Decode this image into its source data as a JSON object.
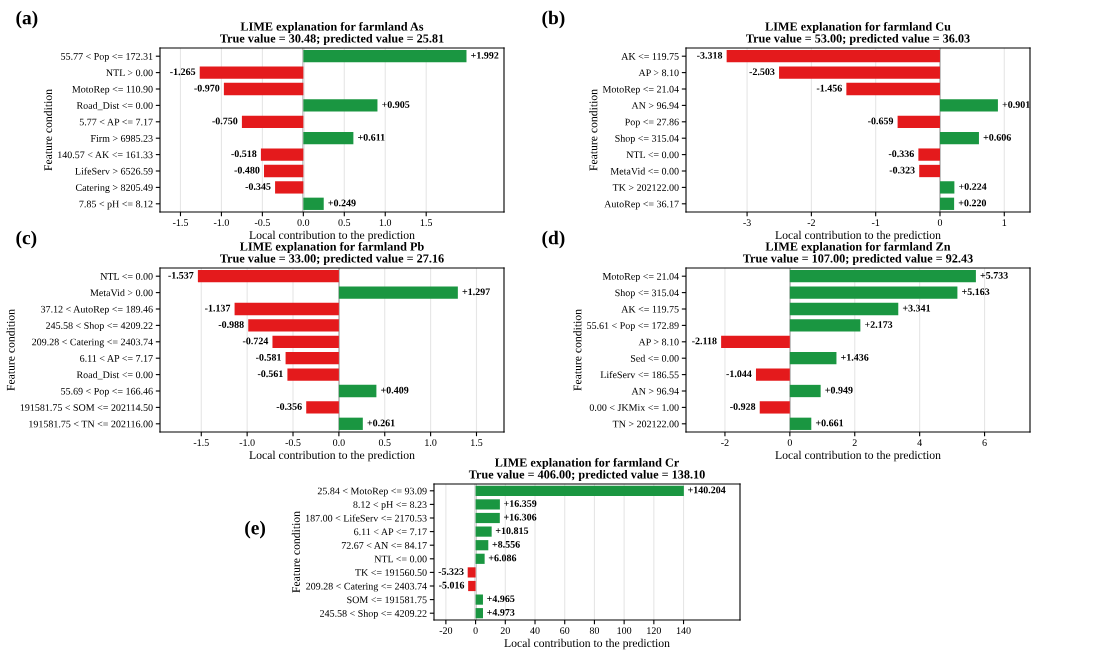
{
  "chart_data": [
    {
      "type": "bar",
      "orientation": "horizontal",
      "title": "LIME explanation for farmland As",
      "subtitle": "True value = 30.48; predicted value = 25.81",
      "xlabel": "Local contribution to the prediction",
      "ylabel": "Feature condition",
      "annotations": [
        "(a)"
      ],
      "categories": [
        "55.77 < Pop <= 172.31",
        "NTL > 0.00",
        "MotoRep <= 110.90",
        "Road_Dist <= 0.00",
        "5.77 < AP <= 7.17",
        "Firm > 6985.23",
        "140.57 < AK <= 161.33",
        "LifeServ > 6526.59",
        "Catering > 8205.49",
        "7.85 < pH <= 8.12"
      ],
      "values": [
        1.992,
        -1.265,
        -0.97,
        0.905,
        -0.75,
        0.611,
        -0.518,
        -0.48,
        -0.345,
        0.249
      ],
      "value_labels": [
        "+1.992",
        "-1.265",
        "-0.970",
        "+0.905",
        "-0.750",
        "+0.611",
        "-0.518",
        "-0.480",
        "-0.345",
        "+0.249"
      ],
      "colors": [
        "#1a9641",
        "#e41a1c",
        "#e41a1c",
        "#1a9641",
        "#e41a1c",
        "#1a9641",
        "#e41a1c",
        "#e41a1c",
        "#e41a1c",
        "#1a9641"
      ],
      "xlim": [
        -1.75,
        2.45
      ],
      "xticks": [
        -1.5,
        {
          "value": -1,
          "label": "-1.0"
        },
        -0.5,
        {
          "value": 0,
          "label": "0.0"
        },
        0.5,
        {
          "value": 1,
          "label": "1.0"
        },
        1.5
      ],
      "grid": "x",
      "ref_lines": [
        {
          "axis": "x",
          "value": 0,
          "color": "#808080"
        }
      ]
    },
    {
      "type": "bar",
      "orientation": "horizontal",
      "title": "LIME explanation for farmland Cu",
      "subtitle": "True value = 53.00; predicted value = 36.03",
      "xlabel": "Local contribution to the prediction",
      "ylabel": "Feature condition",
      "annotations": [
        "(b)"
      ],
      "categories": [
        "AK <= 119.75",
        "AP > 8.10",
        "MotoRep <= 21.04",
        "AN > 96.94",
        "Pop <= 27.86",
        "Shop <= 315.04",
        "NTL <= 0.00",
        "MetaVid <= 0.00",
        "TK > 202122.00",
        "AutoRep <= 36.17"
      ],
      "values": [
        -3.318,
        -2.503,
        -1.456,
        0.901,
        -0.659,
        0.606,
        -0.336,
        -0.323,
        0.224,
        0.22
      ],
      "value_labels": [
        "-3.318",
        "-2.503",
        "-1.456",
        "+0.901",
        "-0.659",
        "+0.606",
        "-0.336",
        "-0.323",
        "+0.224",
        "+0.220"
      ],
      "colors": [
        "#e41a1c",
        "#e41a1c",
        "#e41a1c",
        "#1a9641",
        "#e41a1c",
        "#1a9641",
        "#e41a1c",
        "#e41a1c",
        "#1a9641",
        "#1a9641"
      ],
      "xlim": [
        -3.95,
        1.4
      ],
      "xticks": [
        -3,
        -2,
        -1,
        0,
        1
      ],
      "grid": "x",
      "ref_lines": [
        {
          "axis": "x",
          "value": 0,
          "color": "#808080"
        }
      ]
    },
    {
      "type": "bar",
      "orientation": "horizontal",
      "title": "LIME explanation for farmland Pb",
      "subtitle": "True value = 33.00; predicted value = 27.16",
      "xlabel": "Local contribution to the prediction",
      "ylabel": "Feature condition",
      "annotations": [
        "(c)"
      ],
      "categories": [
        "NTL <= 0.00",
        "MetaVid > 0.00",
        "37.12 < AutoRep <= 189.46",
        "245.58 < Shop <= 4209.22",
        "209.28 < Catering <= 2403.74",
        "6.11 < AP <= 7.17",
        "Road_Dist <= 0.00",
        "55.69 < Pop <= 166.46",
        "191581.75 < SOM <= 202114.50",
        "191581.75 < TN <= 202116.00"
      ],
      "values": [
        -1.537,
        1.297,
        -1.137,
        -0.988,
        -0.724,
        -0.581,
        -0.561,
        0.409,
        -0.356,
        0.261
      ],
      "value_labels": [
        "-1.537",
        "+1.297",
        "-1.137",
        "-0.988",
        "-0.724",
        "-0.581",
        "-0.561",
        "+0.409",
        "-0.356",
        "+0.261"
      ],
      "colors": [
        "#e41a1c",
        "#1a9641",
        "#e41a1c",
        "#e41a1c",
        "#e41a1c",
        "#e41a1c",
        "#e41a1c",
        "#1a9641",
        "#e41a1c",
        "#1a9641"
      ],
      "xlim": [
        -1.95,
        1.8
      ],
      "xticks": [
        -1.5,
        {
          "value": -1,
          "label": "-1.0"
        },
        -0.5,
        {
          "value": 0,
          "label": "0.0"
        },
        0.5,
        {
          "value": 1,
          "label": "1.0"
        },
        1.5
      ],
      "grid": "x",
      "ref_lines": [
        {
          "axis": "x",
          "value": 0,
          "color": "#808080"
        }
      ]
    },
    {
      "type": "bar",
      "orientation": "horizontal",
      "title": "LIME explanation for farmland Zn",
      "subtitle": "True value = 107.00; predicted value = 92.43",
      "xlabel": "Local contribution to the prediction",
      "ylabel": "Feature condition",
      "annotations": [
        "(d)"
      ],
      "categories": [
        "MotoRep <= 21.04",
        "Shop <= 315.04",
        "AK <= 119.75",
        "55.61 < Pop <= 172.89",
        "AP > 8.10",
        "Sed <= 0.00",
        "LifeServ <= 186.55",
        "AN > 96.94",
        "0.00 < JKMix <= 1.00",
        "TN > 202122.00"
      ],
      "values": [
        5.733,
        5.163,
        3.341,
        2.173,
        -2.118,
        1.436,
        -1.044,
        0.949,
        -0.928,
        0.661
      ],
      "value_labels": [
        "+5.733",
        "+5.163",
        "+3.341",
        "+2.173",
        "-2.118",
        "+1.436",
        "-1.044",
        "+0.949",
        "-0.928",
        "+0.661"
      ],
      "colors": [
        "#1a9641",
        "#1a9641",
        "#1a9641",
        "#1a9641",
        "#e41a1c",
        "#1a9641",
        "#e41a1c",
        "#1a9641",
        "#e41a1c",
        "#1a9641"
      ],
      "xlim": [
        -3.2,
        7.4
      ],
      "xticks": [
        -2,
        0,
        2,
        4,
        6
      ],
      "grid": "x",
      "ref_lines": [
        {
          "axis": "x",
          "value": 0,
          "color": "#808080"
        }
      ]
    },
    {
      "type": "bar",
      "orientation": "horizontal",
      "title": "LIME explanation for farmland Cr",
      "subtitle": "True value = 406.00; predicted value = 138.10",
      "xlabel": "Local contribution to the prediction",
      "ylabel": "Feature condition",
      "annotations": [
        "(e)"
      ],
      "categories": [
        "25.84 < MotoRep <= 93.09",
        "8.12 < pH <= 8.23",
        "187.00 < LifeServ <= 2170.53",
        "6.11 < AP <= 7.17",
        "72.67 < AN <= 84.17",
        "NTL <= 0.00",
        "TK <= 191560.50",
        "209.28 < Catering <= 2403.74",
        "SOM <= 191581.75",
        "245.58 < Shop <= 4209.22"
      ],
      "values": [
        140.204,
        16.359,
        16.306,
        10.815,
        8.556,
        6.086,
        -5.323,
        -5.016,
        4.965,
        4.973
      ],
      "value_labels": [
        "+140.204",
        "+16.359",
        "+16.306",
        "+10.815",
        "+8.556",
        "+6.086",
        "-5.323",
        "-5.016",
        "+4.965",
        "+4.973"
      ],
      "colors": [
        "#1a9641",
        "#1a9641",
        "#1a9641",
        "#1a9641",
        "#1a9641",
        "#1a9641",
        "#e41a1c",
        "#e41a1c",
        "#1a9641",
        "#1a9641"
      ],
      "xlim": [
        -28,
        178
      ],
      "xticks": [
        -20,
        0,
        20,
        40,
        60,
        80,
        100,
        120,
        140
      ],
      "grid": "x",
      "ref_lines": [
        {
          "axis": "x",
          "value": 0,
          "color": "#808080"
        }
      ]
    }
  ]
}
